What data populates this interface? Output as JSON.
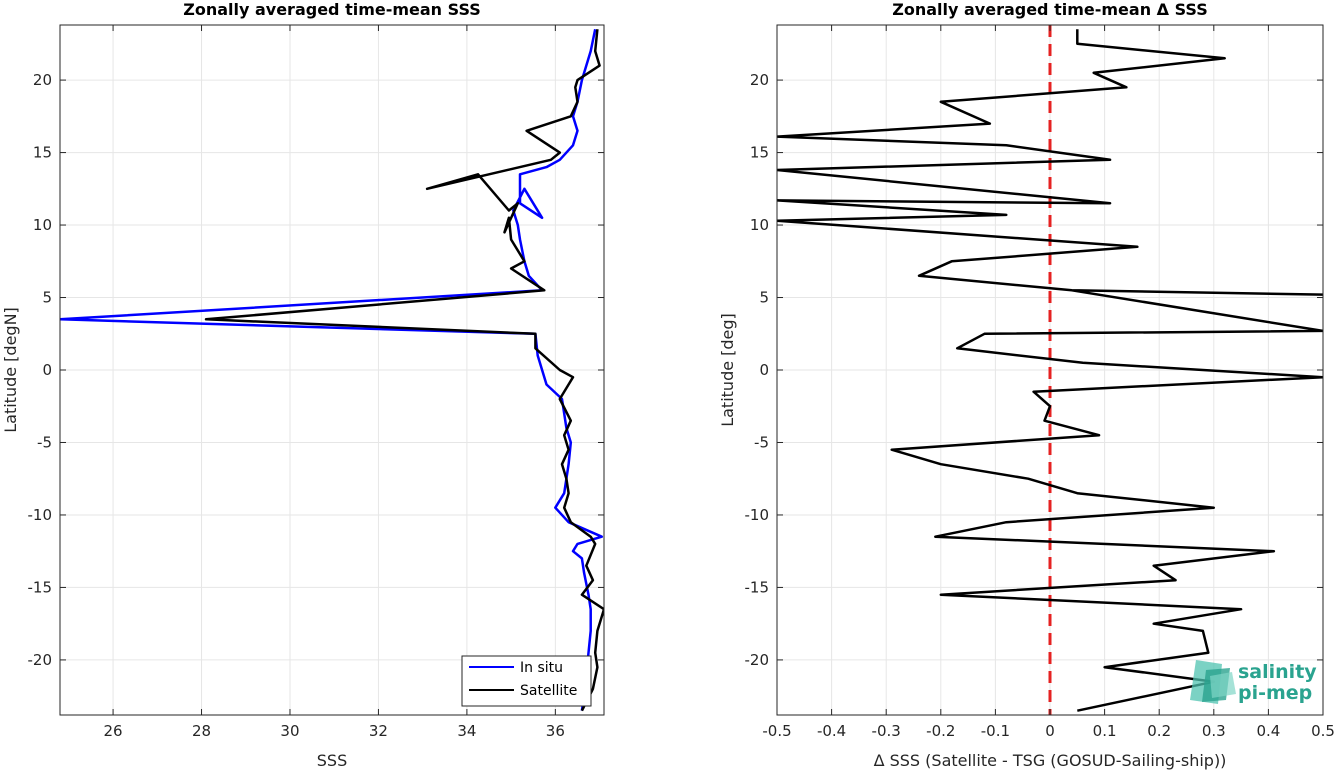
{
  "chart_data": [
    {
      "type": "line",
      "title": "Zonally averaged time-mean SSS",
      "xlabel": "SSS",
      "ylabel": "Latitude [degN]",
      "xlim": [
        24.8,
        37.1
      ],
      "ylim": [
        -23.8,
        23.8
      ],
      "xticks": [
        26,
        28,
        30,
        32,
        34,
        36
      ],
      "yticks": [
        -20,
        -15,
        -10,
        -5,
        0,
        5,
        10,
        15,
        20
      ],
      "grid": true,
      "legend": "bottom-right",
      "series": [
        {
          "name": "In situ",
          "color": "#0000ff",
          "x": [
            36.6,
            36.65,
            36.7,
            36.75,
            36.8,
            36.8,
            36.75,
            36.65,
            36.6,
            36.4,
            36.5,
            37.05,
            36.3,
            36.0,
            36.2,
            36.25,
            36.3,
            36.35,
            36.25,
            36.2,
            36.15,
            35.8,
            35.7,
            35.6,
            35.55,
            24.8,
            35.7,
            35.4,
            35.3,
            35.2,
            35.15,
            35.05,
            35.3,
            35.7,
            35.2,
            35.2,
            35.8,
            36.1,
            36.4,
            36.5,
            36.4,
            36.5,
            36.6,
            36.7,
            36.8,
            36.9
          ],
          "y": [
            -23.5,
            -22.5,
            -21.0,
            -19.5,
            -18.0,
            -16.5,
            -15.5,
            -14.0,
            -13.0,
            -12.5,
            -12.0,
            -11.5,
            -10.5,
            -9.5,
            -8.5,
            -7.5,
            -6.5,
            -5.0,
            -4.0,
            -3.0,
            -2.0,
            -1.0,
            0.0,
            1.0,
            2.5,
            3.5,
            5.5,
            6.5,
            7.5,
            9.0,
            10.0,
            11.0,
            12.5,
            10.5,
            11.5,
            13.5,
            14.0,
            14.5,
            15.5,
            16.5,
            17.5,
            18.5,
            20.0,
            21.0,
            22.0,
            23.5
          ]
        },
        {
          "name": "Satellite",
          "color": "#000000",
          "x": [
            36.6,
            36.85,
            36.95,
            36.9,
            36.95,
            37.1,
            36.6,
            36.85,
            36.7,
            36.9,
            36.8,
            36.35,
            36.2,
            36.3,
            36.25,
            36.15,
            36.3,
            36.2,
            36.35,
            36.1,
            36.4,
            36.1,
            35.55,
            35.55,
            28.1,
            35.75,
            35.0,
            35.3,
            35.0,
            34.95,
            34.85,
            35.15,
            34.95,
            34.25,
            33.1,
            35.9,
            36.1,
            35.35,
            36.35,
            36.5,
            36.45,
            36.5,
            37.0,
            36.9,
            36.95
          ],
          "y": [
            -23.5,
            -22.0,
            -20.5,
            -19.5,
            -18.0,
            -16.5,
            -15.5,
            -14.5,
            -13.5,
            -12.0,
            -11.5,
            -10.5,
            -9.5,
            -8.5,
            -7.5,
            -6.5,
            -5.5,
            -4.5,
            -3.5,
            -2.0,
            -0.5,
            0.0,
            1.5,
            2.5,
            3.5,
            5.5,
            7.0,
            7.5,
            9.0,
            10.5,
            9.5,
            11.5,
            11.0,
            13.5,
            12.5,
            14.5,
            15.0,
            16.5,
            17.5,
            18.5,
            19.5,
            20.0,
            21.0,
            22.0,
            23.5
          ]
        }
      ]
    },
    {
      "type": "line",
      "title": "Zonally averaged time-mean Δ SSS",
      "xlabel": "Δ SSS (Satellite - TSG (GOSUD-Sailing-ship))",
      "ylabel": "Latitude [deg]",
      "xlim": [
        -0.5,
        0.5
      ],
      "ylim": [
        -23.8,
        23.8
      ],
      "xticks": [
        -0.5,
        -0.4,
        -0.3,
        -0.2,
        -0.1,
        0,
        0.1,
        0.2,
        0.3,
        0.4,
        0.5
      ],
      "xtick_labels": [
        "-0.5",
        "-0.4",
        "-0.3",
        "-0.2",
        "-0.1",
        "0",
        "0.1",
        "0.2",
        "0.3",
        "0.4",
        "0.5"
      ],
      "yticks": [
        -20,
        -15,
        -10,
        -5,
        0,
        5,
        10,
        15,
        20
      ],
      "grid": true,
      "reference_line": {
        "x": 0,
        "color": "#e52222",
        "style": "dashed"
      },
      "series": [
        {
          "color": "#000000",
          "x": [
            0.05,
            0.3,
            0.1,
            0.29,
            0.28,
            0.19,
            0.35,
            -0.2,
            0.23,
            0.19,
            0.41,
            -0.21,
            -0.08,
            0.3,
            0.05,
            -0.04,
            -0.2,
            -0.29,
            0.09,
            -0.01,
            0.0,
            -0.03,
            0.5,
            0.06,
            -0.17,
            -0.12,
            0.5,
            0.04,
            0.5,
            0.04,
            -0.24,
            -0.18,
            0.16,
            -0.5,
            -0.08,
            -0.5,
            0.11,
            -0.5,
            0.11,
            -0.08,
            -0.5,
            -0.11,
            -0.2,
            0.14,
            0.08,
            0.32,
            0.05,
            0.05
          ],
          "y": [
            -23.5,
            -21.5,
            -20.5,
            -19.5,
            -18.0,
            -17.5,
            -16.5,
            -15.5,
            -14.5,
            -13.5,
            -12.5,
            -11.5,
            -10.5,
            -9.5,
            -8.5,
            -7.5,
            -6.5,
            -5.5,
            -4.5,
            -3.5,
            -2.5,
            -1.5,
            -0.5,
            0.5,
            1.5,
            2.5,
            2.7,
            5.5,
            5.2,
            5.5,
            6.5,
            7.5,
            8.5,
            10.3,
            10.7,
            11.7,
            11.5,
            13.8,
            14.5,
            15.5,
            16.1,
            17.0,
            18.5,
            19.5,
            20.5,
            21.5,
            22.5,
            23.5
          ]
        }
      ]
    }
  ],
  "legend": {
    "in_situ": "In situ",
    "satellite": "Satellite"
  },
  "logo": {
    "line1": "salinity",
    "line2": "pi-mep"
  }
}
